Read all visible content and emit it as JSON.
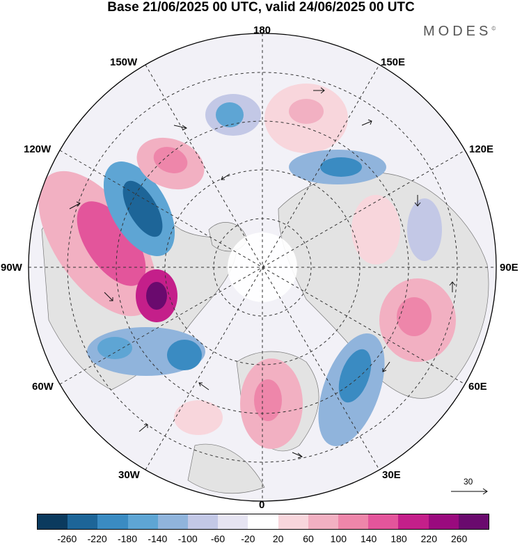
{
  "header": {
    "title": "Base 21/06/2025 00 UTC, valid 24/06/2025 00 UTC",
    "brand": "MODES"
  },
  "map": {
    "longitude_labels": {
      "top": "180",
      "bottom": "0",
      "left": "90W",
      "right": "90E",
      "upper_left_1": "150W",
      "upper_left_2": "120W",
      "upper_right_1": "150E",
      "upper_right_2": "120E",
      "lower_left_1": "60W",
      "lower_left_2": "30W",
      "lower_right_1": "60E",
      "lower_right_2": "30E"
    },
    "reference_vector": "30"
  },
  "colorbar": {
    "colors": [
      "#0b3a5e",
      "#1d6598",
      "#3a8bc2",
      "#5ea5d4",
      "#90b4dc",
      "#c3c8e6",
      "#e6e4f2",
      "#ffffff",
      "#f8d6dc",
      "#f2b0c2",
      "#ee86aa",
      "#e3559b",
      "#c41f8a",
      "#9a0a7e",
      "#6a0a6e"
    ],
    "ticks": [
      "-260",
      "-220",
      "-180",
      "-140",
      "-100",
      "-60",
      "-20",
      "20",
      "60",
      "100",
      "140",
      "180",
      "220",
      "260"
    ]
  }
}
